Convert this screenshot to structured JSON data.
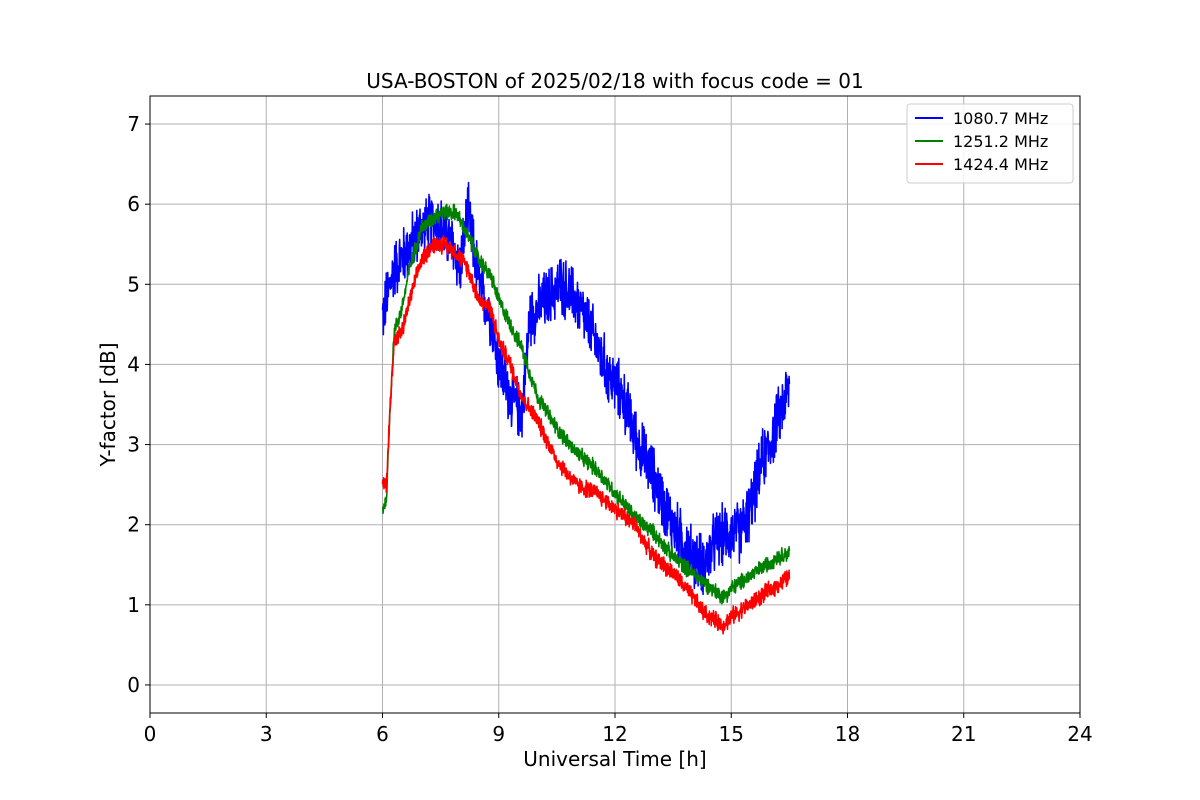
{
  "chart_data": {
    "type": "line",
    "title": "USA-BOSTON of 2025/02/18 with focus code = 01",
    "xlabel": "Universal Time [h]",
    "ylabel": "Y-factor [dB]",
    "xlim": [
      0,
      24
    ],
    "ylim": [
      -0.35,
      7.35
    ],
    "xticks": [
      0,
      3,
      6,
      9,
      12,
      15,
      18,
      21,
      24
    ],
    "yticks": [
      0,
      1,
      2,
      3,
      4,
      5,
      6,
      7
    ],
    "grid": true,
    "legend_position": "top-right",
    "series": [
      {
        "name": "1080.7 MHz",
        "color": "#0000ff",
        "noise": 0.45,
        "x": [
          6.0,
          6.1,
          6.3,
          6.6,
          7.0,
          7.4,
          7.8,
          8.0,
          8.2,
          8.5,
          8.8,
          9.0,
          9.3,
          9.6,
          9.8,
          10.2,
          10.6,
          11.0,
          11.4,
          11.8,
          12.2,
          12.6,
          13.0,
          13.3,
          13.6,
          14.0,
          14.3,
          14.6,
          14.9,
          15.2,
          15.5,
          15.8,
          16.0,
          16.2,
          16.4,
          16.5
        ],
        "y": [
          4.6,
          4.8,
          5.2,
          5.4,
          5.7,
          5.8,
          5.5,
          5.2,
          5.9,
          5.0,
          4.6,
          4.0,
          3.6,
          3.4,
          4.6,
          4.8,
          5.0,
          4.8,
          4.4,
          3.9,
          3.6,
          3.0,
          2.6,
          2.2,
          1.9,
          1.6,
          1.5,
          1.8,
          1.9,
          1.9,
          2.2,
          2.8,
          3.0,
          3.3,
          3.6,
          3.7
        ]
      },
      {
        "name": "1251.2 MHz",
        "color": "#008000",
        "noise": 0.12,
        "x": [
          6.0,
          6.1,
          6.2,
          6.3,
          6.5,
          6.7,
          7.0,
          7.5,
          7.9,
          8.2,
          8.5,
          8.8,
          9.0,
          9.3,
          9.6,
          10.0,
          10.5,
          11.0,
          11.5,
          12.0,
          12.5,
          13.0,
          13.5,
          14.0,
          14.5,
          14.8,
          15.0,
          15.3,
          15.6,
          15.9,
          16.2,
          16.5
        ],
        "y": [
          2.2,
          2.3,
          3.5,
          4.4,
          4.7,
          5.2,
          5.7,
          5.9,
          5.9,
          5.6,
          5.3,
          5.1,
          4.8,
          4.5,
          4.2,
          3.6,
          3.2,
          2.9,
          2.7,
          2.4,
          2.1,
          1.9,
          1.6,
          1.4,
          1.2,
          1.1,
          1.2,
          1.3,
          1.4,
          1.5,
          1.6,
          1.65
        ]
      },
      {
        "name": "1424.4 MHz",
        "color": "#ff0000",
        "noise": 0.13,
        "x": [
          6.0,
          6.1,
          6.2,
          6.3,
          6.5,
          6.7,
          7.0,
          7.3,
          7.6,
          7.9,
          8.2,
          8.5,
          8.8,
          9.0,
          9.3,
          9.6,
          10.0,
          10.5,
          11.0,
          11.5,
          12.0,
          12.5,
          13.0,
          13.5,
          14.0,
          14.3,
          14.6,
          14.8,
          15.0,
          15.3,
          15.6,
          15.9,
          16.2,
          16.5
        ],
        "y": [
          2.5,
          2.5,
          3.5,
          4.3,
          4.4,
          4.8,
          5.3,
          5.5,
          5.5,
          5.4,
          5.2,
          4.8,
          4.7,
          4.3,
          4.0,
          3.6,
          3.3,
          2.8,
          2.5,
          2.4,
          2.2,
          2.0,
          1.6,
          1.4,
          1.1,
          0.9,
          0.8,
          0.75,
          0.85,
          0.95,
          1.05,
          1.15,
          1.25,
          1.35
        ]
      }
    ]
  }
}
